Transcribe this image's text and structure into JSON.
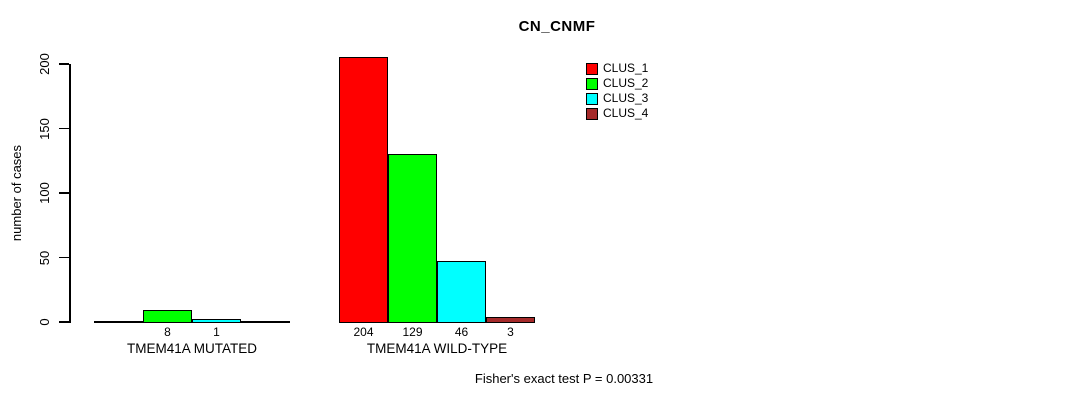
{
  "title": "CN_CNMF",
  "y_axis_label": "number of cases",
  "footnote": "Fisher's exact test P = 0.00331",
  "chart_data": {
    "type": "bar",
    "title": "CN_CNMF",
    "xlabel": "",
    "ylabel": "number of cases",
    "ylim": [
      0,
      200
    ],
    "yticks": [
      0,
      50,
      100,
      150,
      200
    ],
    "grid": false,
    "legend_position": "top-right",
    "background_color": "#FFFFFF",
    "axis_color": "#000000",
    "categories": [
      "TMEM41A MUTATED",
      "TMEM41A WILD-TYPE"
    ],
    "series": [
      {
        "name": "CLUS_1",
        "color": "#FF0000",
        "values": [
          0,
          204
        ]
      },
      {
        "name": "CLUS_2",
        "color": "#00FF00",
        "values": [
          8,
          129
        ]
      },
      {
        "name": "CLUS_3",
        "color": "#00FFFF",
        "values": [
          1,
          46
        ]
      },
      {
        "name": "CLUS_4",
        "color": "#A52A2A",
        "values": [
          0,
          3
        ]
      }
    ],
    "bar_value_labels_shown": [
      "8",
      "1",
      "204",
      "129",
      "46",
      "3"
    ],
    "annotation": "Fisher's exact test P = 0.00331"
  }
}
